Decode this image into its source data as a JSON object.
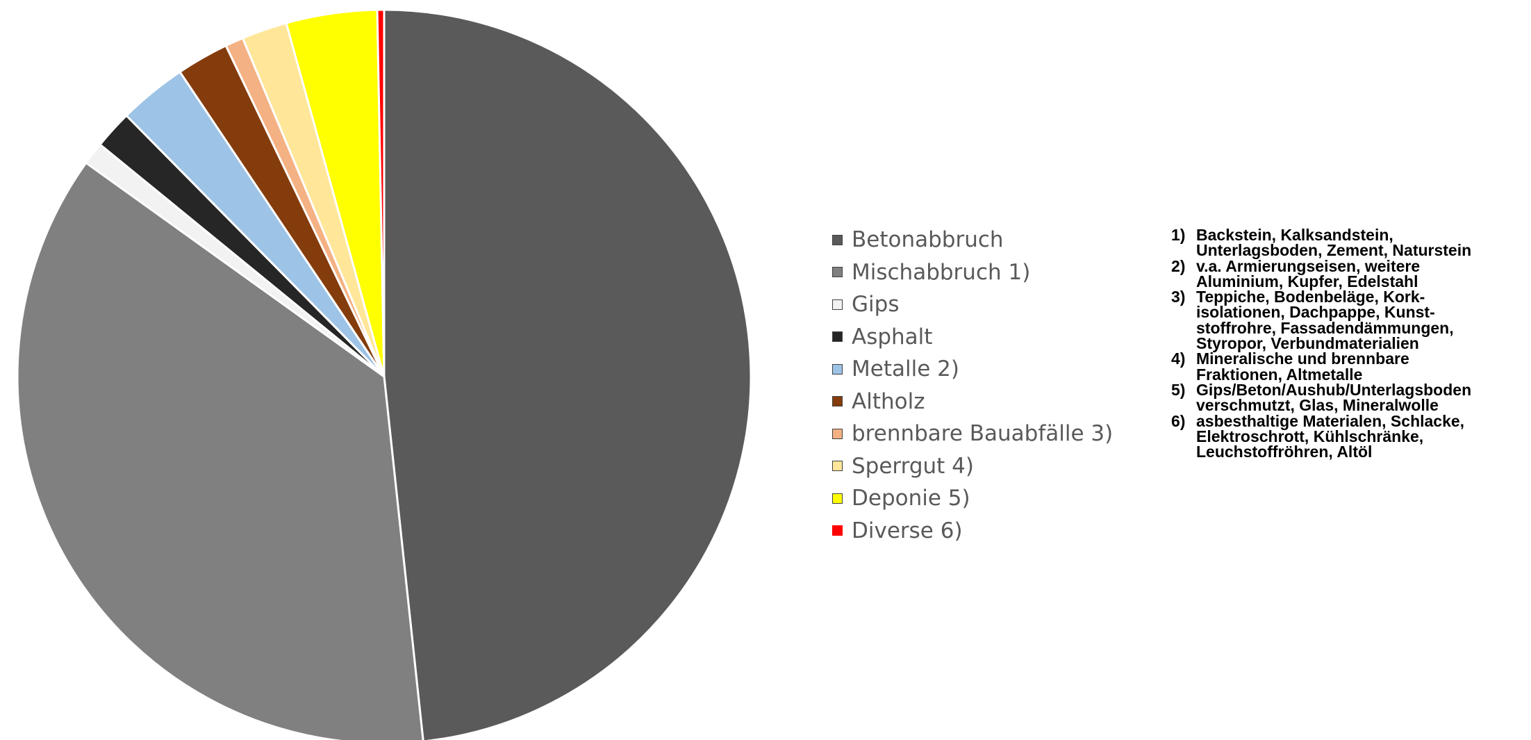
{
  "chart_data": {
    "type": "pie",
    "start_angle_deg": 0,
    "direction": "clockwise",
    "slices": [
      {
        "label": "Betonabbruch",
        "value": 48.3,
        "color": "#5a5a5a"
      },
      {
        "label": "Mischabbruch 1)",
        "value": 36.6,
        "color": "#808080"
      },
      {
        "label": "Gips",
        "value": 1.0,
        "color": "#f2f2f2"
      },
      {
        "label": "Asphalt",
        "value": 1.7,
        "color": "#262626"
      },
      {
        "label": "Metalle 2)",
        "value": 3.0,
        "color": "#9dc3e6"
      },
      {
        "label": "Altholz",
        "value": 2.3,
        "color": "#843c0c"
      },
      {
        "label": "brennbare Bauabfälle 3)",
        "value": 0.8,
        "color": "#f4b183"
      },
      {
        "label": "Sperrgut 4)",
        "value": 2.0,
        "color": "#ffe699"
      },
      {
        "label": "Deponie 5)",
        "value": 4.0,
        "color": "#ffff00"
      },
      {
        "label": "Diverse 6)",
        "value": 0.3,
        "color": "#ff0000"
      }
    ],
    "legend_position": "right"
  },
  "notes": [
    {
      "num": "1)",
      "text": "Backstein, Kalksandstein,\nUnterlagsboden, Zement, Naturstein"
    },
    {
      "num": "2)",
      "text": "v.a. Armierungseisen, weitere\nAluminium, Kupfer, Edelstahl"
    },
    {
      "num": "3)",
      "text": "Teppiche, Bodenbeläge, Kork-\n isolationen, Dachpappe, Kunst-\n stoffrohre, Fassadendämmungen,\nStyropor, Verbundmaterialien"
    },
    {
      "num": "4)",
      "text": "Mineralische und brennbare\nFraktionen, Altmetalle"
    },
    {
      "num": "5)",
      "text": "Gips/Beton/Aushub/Unterlagsboden\nverschmutzt, Glas, Mineralwolle"
    },
    {
      "num": "6)",
      "text": "asbesthaltige Materialen, Schlacke,\nElektroschrott, Kühlschränke,\nLeuchstoffröhren, Altöl"
    }
  ]
}
